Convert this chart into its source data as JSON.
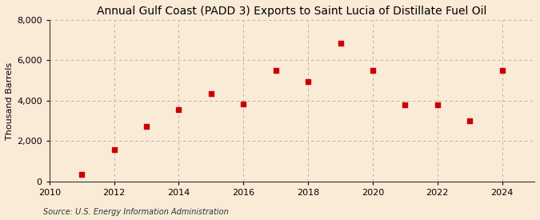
{
  "title": "Annual Gulf Coast (PADD 3) Exports to Saint Lucia of Distillate Fuel Oil",
  "ylabel": "Thousand Barrels",
  "source": "Source: U.S. Energy Information Administration",
  "years": [
    2011,
    2012,
    2013,
    2014,
    2015,
    2016,
    2017,
    2018,
    2019,
    2020,
    2021,
    2022,
    2023,
    2024
  ],
  "values": [
    350,
    1600,
    2750,
    3550,
    4350,
    3850,
    5500,
    4950,
    6850,
    5500,
    3800,
    3800,
    3000,
    5500
  ],
  "marker_color": "#cc0000",
  "marker": "s",
  "marker_size": 18,
  "xlim": [
    2010,
    2025
  ],
  "ylim": [
    0,
    8000
  ],
  "yticks": [
    0,
    2000,
    4000,
    6000,
    8000
  ],
  "xticks": [
    2010,
    2012,
    2014,
    2016,
    2018,
    2020,
    2022,
    2024
  ],
  "grid_color": "#aaaaaa",
  "bg_color": "#faebd7",
  "title_fontsize": 10,
  "label_fontsize": 8,
  "tick_fontsize": 8,
  "source_fontsize": 7
}
